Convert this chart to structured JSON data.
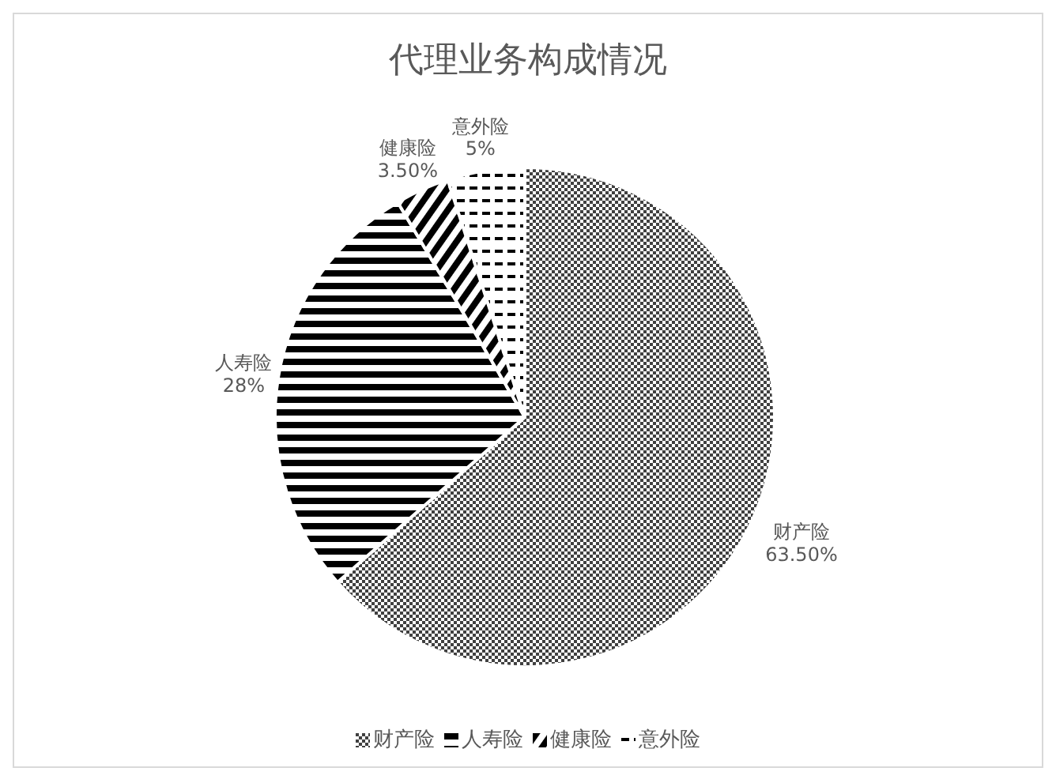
{
  "chart_data": {
    "type": "pie",
    "title": "代理业务构成情况",
    "categories": [
      "财产险",
      "人寿险",
      "健康险",
      "意外险"
    ],
    "values": [
      63.5,
      28,
      3.5,
      5
    ],
    "value_labels": [
      "63.50%",
      "28%",
      "3.50%",
      "5%"
    ],
    "colors": [
      "#404040",
      "#000000",
      "#000000",
      "#000000"
    ],
    "legend": "bottom"
  }
}
